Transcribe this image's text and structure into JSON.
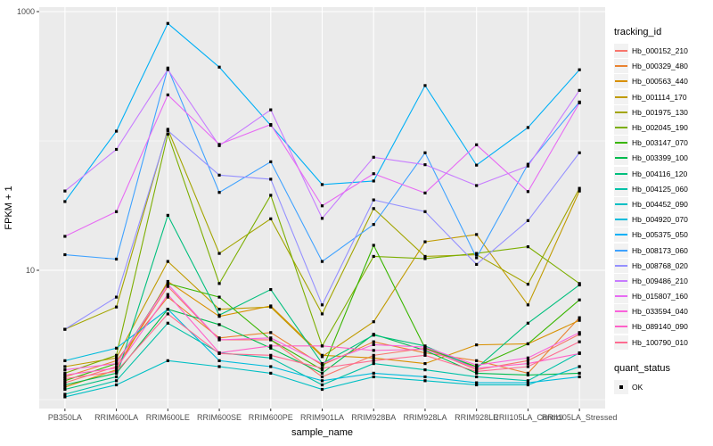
{
  "figure": {
    "panel_bg": "#EBEBEB",
    "grid_color": "#FFFFFF",
    "tick_color": "#333333",
    "tick_text_color": "#4D4D4D",
    "point_color": "#000000",
    "y_axis": {
      "title": "FPKM + 1",
      "scale": "log10",
      "ticks": [
        {
          "label": "1000",
          "value": 1000
        },
        {
          "label": "10",
          "value": 10
        }
      ],
      "major_gridlines": [
        10,
        1000
      ],
      "minor_gridlines": [
        1,
        100
      ]
    },
    "x_axis": {
      "title": "sample_name"
    }
  },
  "legend": {
    "tracking_title": "tracking_id",
    "quant_title": "quant_status",
    "quant_items": [
      {
        "label": "OK"
      }
    ],
    "key_bg": "#F2F2F2"
  },
  "chart_data": {
    "type": "line",
    "title": "",
    "xlabel": "sample_name",
    "ylabel": "FPKM + 1",
    "yscale": "log10",
    "ylim": [
      0.85,
      1100
    ],
    "grid": true,
    "legend_position": "right",
    "marker": "black-square",
    "x": [
      "PB350LA",
      "RRIM600LA",
      "RRIM600LE",
      "RRIM600SE",
      "RRIM600PE",
      "RRIM901LA",
      "RRIM928BA",
      "RRIM928LA",
      "RRIM928LE",
      "RRII105LA_Control",
      "RRII105LA_Stressed"
    ],
    "series": [
      {
        "name": "Hb_000152_210",
        "color": "#F8766D",
        "values": [
          1.35,
          1.8,
          7.5,
          2.9,
          2.9,
          1.5,
          2.2,
          2.5,
          1.7,
          2.0,
          3.2
        ]
      },
      {
        "name": "Hb_000329_480",
        "color": "#EA8331",
        "values": [
          1.5,
          2.0,
          6.2,
          3.0,
          3.3,
          1.85,
          2.8,
          2.3,
          2.0,
          1.6,
          4.3
        ]
      },
      {
        "name": "Hb_000563_440",
        "color": "#D89000",
        "values": [
          1.25,
          1.7,
          8.2,
          4.4,
          5.3,
          2.2,
          2.1,
          1.9,
          2.65,
          2.7,
          4.1
        ]
      },
      {
        "name": "Hb_001114_170",
        "color": "#C09B00",
        "values": [
          1.8,
          2.1,
          11.7,
          5.0,
          5.2,
          2.15,
          4.0,
          16.6,
          18.9,
          5.4,
          41
        ]
      },
      {
        "name": "Hb_001975_130",
        "color": "#A3A500",
        "values": [
          3.5,
          5.2,
          123,
          13.5,
          25,
          4.6,
          30,
          12.8,
          13.2,
          7.8,
          43
        ]
      },
      {
        "name": "Hb_002045_190",
        "color": "#7CAE00",
        "values": [
          1.6,
          2.2,
          113,
          7.9,
          38,
          2.6,
          12.8,
          12.3,
          13.5,
          15.2,
          7.9
        ]
      },
      {
        "name": "Hb_003147_070",
        "color": "#39B600",
        "values": [
          1.4,
          1.9,
          7.9,
          6.2,
          2.9,
          1.7,
          15.6,
          2.5,
          1.8,
          2.7,
          5.9
        ]
      },
      {
        "name": "Hb_003399_100",
        "color": "#00BB4E",
        "values": [
          1.3,
          1.6,
          5.0,
          3.8,
          2.5,
          1.6,
          3.2,
          2.4,
          1.6,
          1.55,
          1.6
        ]
      },
      {
        "name": "Hb_004116_120",
        "color": "#00BF7D",
        "values": [
          1.2,
          1.5,
          26.6,
          4.5,
          7.1,
          1.9,
          3.15,
          2.6,
          1.75,
          3.9,
          7.7
        ]
      },
      {
        "name": "Hb_004125_060",
        "color": "#00C1A7",
        "values": [
          1.1,
          1.4,
          3.9,
          2.3,
          2.1,
          1.3,
          1.9,
          1.7,
          1.5,
          1.4,
          2.3
        ]
      },
      {
        "name": "Hb_004452_090",
        "color": "#00BFC4",
        "values": [
          1.05,
          1.3,
          2.0,
          1.8,
          1.6,
          1.2,
          1.5,
          1.4,
          1.3,
          1.3,
          1.8
        ]
      },
      {
        "name": "Hb_004920_070",
        "color": "#00BBDC",
        "values": [
          2.0,
          2.5,
          5.0,
          2.0,
          1.8,
          1.4,
          1.6,
          1.5,
          1.35,
          1.35,
          1.5
        ]
      },
      {
        "name": "Hb_005375_050",
        "color": "#00B0F6",
        "values": [
          34,
          119,
          810,
          372,
          132,
          46,
          49,
          268,
          65,
          127,
          355
        ]
      },
      {
        "name": "Hb_008173_060",
        "color": "#3FA2FF",
        "values": [
          13.2,
          12.2,
          366,
          40,
          69,
          11.7,
          22.6,
          81,
          12.5,
          66,
          200
        ]
      },
      {
        "name": "Hb_008768_020",
        "color": "#9590FF",
        "values": [
          3.5,
          6.2,
          120,
          54.4,
          50.6,
          5.4,
          35,
          28.4,
          11.1,
          24.2,
          81
        ]
      },
      {
        "name": "Hb_009486_210",
        "color": "#C77CFF",
        "values": [
          41,
          86,
          356,
          92,
          174,
          25.2,
          74.8,
          65.5,
          45.2,
          64,
          246
        ]
      },
      {
        "name": "Hb_015807_160",
        "color": "#E76BF3",
        "values": [
          18.3,
          28.4,
          227,
          94,
          134,
          31.5,
          55.8,
          39.6,
          93.4,
          40.6,
          197
        ]
      },
      {
        "name": "Hb_033594_040",
        "color": "#FA62DB",
        "values": [
          1.7,
          1.9,
          7.8,
          2.9,
          3.0,
          1.9,
          2.66,
          2.55,
          1.85,
          2.1,
          3.3
        ]
      },
      {
        "name": "Hb_089140_090",
        "color": "#FF61C8",
        "values": [
          1.55,
          1.75,
          6.5,
          2.3,
          2.6,
          2.6,
          2.4,
          2.45,
          1.75,
          1.9,
          2.27
        ]
      },
      {
        "name": "Hb_100790_010",
        "color": "#FF6C91",
        "values": [
          1.45,
          1.65,
          4.6,
          2.27,
          2.2,
          1.75,
          2.0,
          2.2,
          1.65,
          1.8,
          2.8
        ]
      }
    ]
  }
}
